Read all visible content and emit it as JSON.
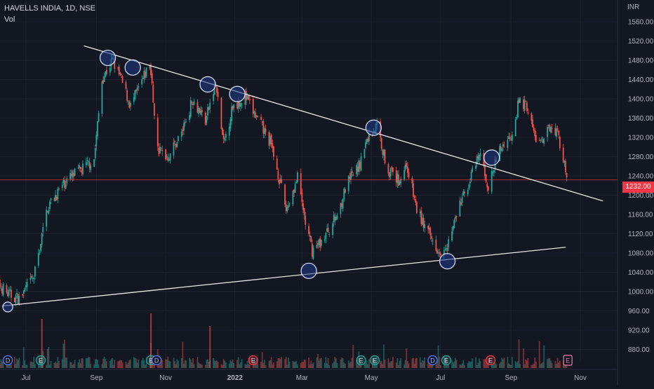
{
  "header": {
    "symbol": "HAVELLS INDIA, 1D, NSE",
    "volume_label": "Vol",
    "currency": "INR"
  },
  "colors": {
    "background": "#131722",
    "up": "#26a69a",
    "down": "#ef5350",
    "grid": "#1e222d",
    "axis_text": "#b2b5be",
    "trendline": "#e6e6e6",
    "price_line": "#f23645",
    "marker_fill": "#1f3a8a"
  },
  "chart_data": {
    "type": "candlestick",
    "title": "HAVELLS INDIA, 1D, NSE",
    "ylabel": "INR",
    "ylim": [
      860,
      1580
    ],
    "y_ticks": [
      880,
      920,
      960,
      1000,
      1040,
      1080,
      1120,
      1160,
      1200,
      1240,
      1280,
      1320,
      1360,
      1400,
      1440,
      1480,
      1520,
      1560
    ],
    "y_tick_labels": [
      "880.00",
      "920.00",
      "960.00",
      "1000.00",
      "1040.00",
      "1080.00",
      "1120.00",
      "1160.00",
      "1200.00",
      "1240.00",
      "1280.00",
      "1320.00",
      "1360.00",
      "1400.00",
      "1440.00",
      "1480.00",
      "1520.00",
      "1560.00"
    ],
    "x_labels": [
      "Jul",
      "Sep",
      "Nov",
      "2022",
      "Mar",
      "May",
      "Jul",
      "Sep",
      "Nov"
    ],
    "x_label_dates": [
      "2021-07-01",
      "2021-09-01",
      "2021-11-01",
      "2022-01-01",
      "2022-03-01",
      "2022-05-01",
      "2022-07-01",
      "2022-09-01",
      "2022-11-01"
    ],
    "last_price": 1232.0,
    "last_price_label": "1232.00",
    "price_path": [
      [
        "2021-06-01",
        1030
      ],
      [
        "2021-06-15",
        995
      ],
      [
        "2021-06-25",
        985
      ],
      [
        "2021-07-08",
        1030
      ],
      [
        "2021-07-20",
        1175
      ],
      [
        "2021-08-05",
        1230
      ],
      [
        "2021-08-20",
        1255
      ],
      [
        "2021-08-30",
        1275
      ],
      [
        "2021-09-06",
        1440
      ],
      [
        "2021-09-15",
        1480
      ],
      [
        "2021-09-22",
        1445
      ],
      [
        "2021-10-01",
        1385
      ],
      [
        "2021-10-12",
        1440
      ],
      [
        "2021-10-18",
        1475
      ],
      [
        "2021-10-25",
        1295
      ],
      [
        "2021-11-03",
        1280
      ],
      [
        "2021-11-15",
        1330
      ],
      [
        "2021-11-25",
        1400
      ],
      [
        "2021-12-06",
        1355
      ],
      [
        "2021-12-15",
        1430
      ],
      [
        "2021-12-22",
        1305
      ],
      [
        "2021-12-30",
        1385
      ],
      [
        "2022-01-10",
        1405
      ],
      [
        "2022-01-20",
        1360
      ],
      [
        "2022-02-01",
        1310
      ],
      [
        "2022-02-08",
        1245
      ],
      [
        "2022-02-15",
        1170
      ],
      [
        "2022-02-25",
        1235
      ],
      [
        "2022-03-05",
        1130
      ],
      [
        "2022-03-10",
        1085
      ],
      [
        "2022-03-20",
        1110
      ],
      [
        "2022-04-01",
        1160
      ],
      [
        "2022-04-10",
        1225
      ],
      [
        "2022-04-20",
        1260
      ],
      [
        "2022-04-28",
        1320
      ],
      [
        "2022-05-06",
        1345
      ],
      [
        "2022-05-15",
        1255
      ],
      [
        "2022-05-25",
        1230
      ],
      [
        "2022-06-01",
        1265
      ],
      [
        "2022-06-10",
        1170
      ],
      [
        "2022-06-20",
        1120
      ],
      [
        "2022-06-30",
        1085
      ],
      [
        "2022-07-08",
        1105
      ],
      [
        "2022-07-18",
        1180
      ],
      [
        "2022-07-28",
        1240
      ],
      [
        "2022-08-05",
        1285
      ],
      [
        "2022-08-12",
        1215
      ],
      [
        "2022-08-22",
        1295
      ],
      [
        "2022-09-01",
        1325
      ],
      [
        "2022-09-08",
        1395
      ],
      [
        "2022-09-15",
        1385
      ],
      [
        "2022-09-22",
        1320
      ],
      [
        "2022-09-29",
        1305
      ],
      [
        "2022-10-06",
        1350
      ],
      [
        "2022-10-12",
        1330
      ],
      [
        "2022-10-17",
        1275
      ],
      [
        "2022-10-20",
        1232
      ]
    ],
    "trendlines": [
      {
        "from": [
          "2021-08-21",
          1510
        ],
        "to": [
          "2022-11-21",
          1188
        ]
      },
      {
        "from": [
          "2021-06-10",
          970
        ],
        "to": [
          "2022-10-19",
          1092
        ]
      }
    ],
    "touch_points": [
      [
        "2021-09-11",
        1485
      ],
      [
        "2021-10-03",
        1465
      ],
      [
        "2021-12-08",
        1430
      ],
      [
        "2022-01-03",
        1410
      ],
      [
        "2022-05-03",
        1340
      ],
      [
        "2022-08-15",
        1278
      ],
      [
        "2021-06-15",
        968
      ],
      [
        "2022-03-07",
        1043
      ],
      [
        "2022-07-07",
        1063
      ]
    ],
    "event_markers": [
      {
        "date": "2021-06-15",
        "label": "D"
      },
      {
        "date": "2021-07-14",
        "label": "E"
      },
      {
        "date": "2021-10-19",
        "label": "E"
      },
      {
        "date": "2021-10-24",
        "label": "D"
      },
      {
        "date": "2022-01-17",
        "label": "E"
      },
      {
        "date": "2022-04-22",
        "label": "E"
      },
      {
        "date": "2022-05-04",
        "label": "E"
      },
      {
        "date": "2022-06-24",
        "label": "D"
      },
      {
        "date": "2022-07-06",
        "label": "E"
      },
      {
        "date": "2022-08-14",
        "label": "E"
      },
      {
        "date": "2022-10-21",
        "label": "E"
      }
    ]
  }
}
